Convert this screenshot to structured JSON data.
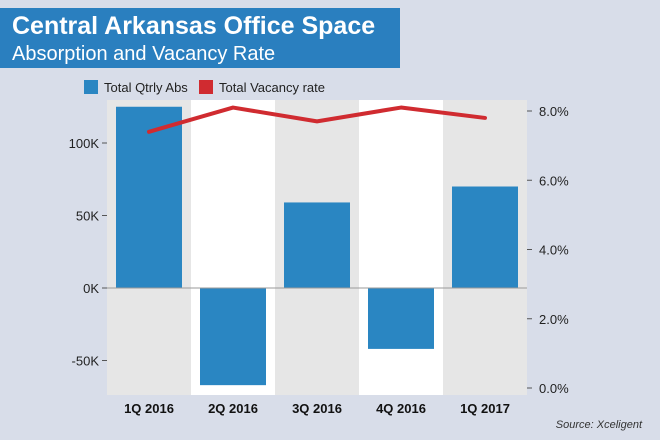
{
  "title": "Central Arkansas Office Space",
  "subtitle": "Absorption and Vacancy Rate",
  "source": "Source: Xceligent",
  "colors": {
    "bar": "#2a86c2",
    "line": "#d02b30",
    "band_gray": "#e6e6e6",
    "band_white": "#ffffff",
    "title_bg": "#2a7fbf"
  },
  "chart_data": {
    "type": "bar",
    "categories": [
      "1Q 2016",
      "2Q 2016",
      "3Q 2016",
      "4Q 2016",
      "1Q 2017"
    ],
    "series": [
      {
        "name": "Total Qtrly Abs",
        "type": "bar",
        "axis": "left",
        "values": [
          125000,
          -67000,
          59000,
          -42000,
          70000
        ]
      },
      {
        "name": "Total Vacancy rate",
        "type": "line",
        "axis": "right",
        "values": [
          7.4,
          8.1,
          7.7,
          8.1,
          7.8
        ]
      }
    ],
    "left_axis": {
      "ticks": [
        "100K",
        "50K",
        "0K",
        "-50K"
      ],
      "tick_values": [
        100000,
        50000,
        0,
        -50000
      ],
      "range": [
        -70000,
        126000
      ]
    },
    "right_axis": {
      "ticks": [
        "8.0%",
        "6.0%",
        "4.0%",
        "2.0%",
        "0.0%"
      ],
      "tick_values": [
        8,
        6,
        4,
        2,
        0
      ],
      "range": [
        0,
        8.5
      ]
    },
    "legend_position": "top-left"
  }
}
